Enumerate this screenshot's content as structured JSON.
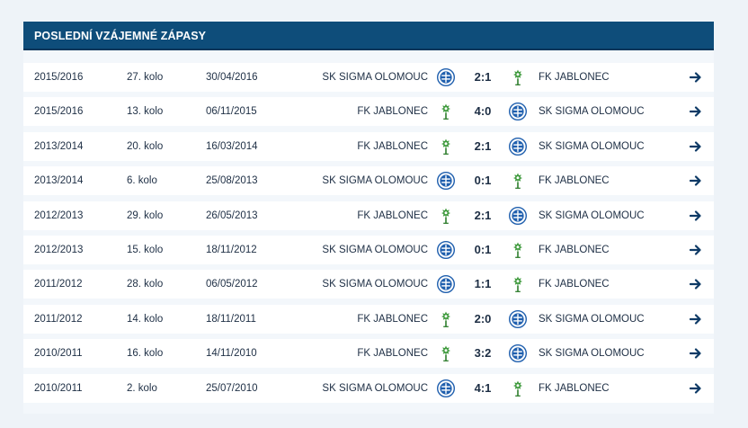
{
  "header": {
    "title": "POSLEDNÍ VZÁJEMNÉ ZÁPASY"
  },
  "matches": [
    {
      "season": "2015/2016",
      "round": "27. kolo",
      "date": "30/04/2016",
      "home": "SK SIGMA OLOMOUC",
      "home_logo": "sigma",
      "score": "2:1",
      "away": "FK JABLONEC",
      "away_logo": "jablonec"
    },
    {
      "season": "2015/2016",
      "round": "13. kolo",
      "date": "06/11/2015",
      "home": "FK JABLONEC",
      "home_logo": "jablonec",
      "score": "4:0",
      "away": "SK SIGMA OLOMOUC",
      "away_logo": "sigma"
    },
    {
      "season": "2013/2014",
      "round": "20. kolo",
      "date": "16/03/2014",
      "home": "FK JABLONEC",
      "home_logo": "jablonec",
      "score": "2:1",
      "away": "SK SIGMA OLOMOUC",
      "away_logo": "sigma"
    },
    {
      "season": "2013/2014",
      "round": "6. kolo",
      "date": "25/08/2013",
      "home": "SK SIGMA OLOMOUC",
      "home_logo": "sigma",
      "score": "0:1",
      "away": "FK JABLONEC",
      "away_logo": "jablonec"
    },
    {
      "season": "2012/2013",
      "round": "29. kolo",
      "date": "26/05/2013",
      "home": "FK JABLONEC",
      "home_logo": "jablonec",
      "score": "2:1",
      "away": "SK SIGMA OLOMOUC",
      "away_logo": "sigma"
    },
    {
      "season": "2012/2013",
      "round": "15. kolo",
      "date": "18/11/2012",
      "home": "SK SIGMA OLOMOUC",
      "home_logo": "sigma",
      "score": "0:1",
      "away": "FK JABLONEC",
      "away_logo": "jablonec"
    },
    {
      "season": "2011/2012",
      "round": "28. kolo",
      "date": "06/05/2012",
      "home": "SK SIGMA OLOMOUC",
      "home_logo": "sigma",
      "score": "1:1",
      "away": "FK JABLONEC",
      "away_logo": "jablonec"
    },
    {
      "season": "2011/2012",
      "round": "14. kolo",
      "date": "18/11/2011",
      "home": "FK JABLONEC",
      "home_logo": "jablonec",
      "score": "2:0",
      "away": "SK SIGMA OLOMOUC",
      "away_logo": "sigma"
    },
    {
      "season": "2010/2011",
      "round": "16. kolo",
      "date": "14/11/2010",
      "home": "FK JABLONEC",
      "home_logo": "jablonec",
      "score": "3:2",
      "away": "SK SIGMA OLOMOUC",
      "away_logo": "sigma"
    },
    {
      "season": "2010/2011",
      "round": "2. kolo",
      "date": "25/07/2010",
      "home": "SK SIGMA OLOMOUC",
      "home_logo": "sigma",
      "score": "4:1",
      "away": "FK JABLONEC",
      "away_logo": "jablonec"
    }
  ],
  "icons": {
    "row_arrow": "arrow-right-icon",
    "sigma": "sigma-olomouc-logo-icon",
    "jablonec": "fk-jablonec-logo-icon"
  },
  "colors": {
    "header_bg": "#0e4d7a",
    "text": "#1d2e44",
    "sigma_blue": "#1f5fae",
    "jablonec_green": "#3f9a3d",
    "arrow": "#0e3a66"
  }
}
